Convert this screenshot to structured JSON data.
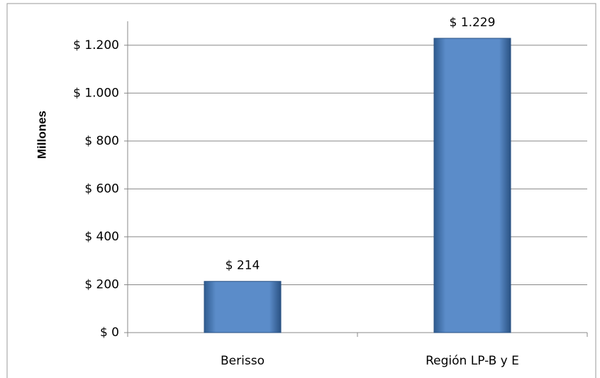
{
  "chart_data": {
    "type": "bar",
    "y_label": "Millones",
    "categories": [
      "Berisso",
      "Región LP-B y E"
    ],
    "values": [
      214,
      1229
    ],
    "value_labels": [
      "$ 214",
      "$ 1.229"
    ],
    "color": "#4f81bd",
    "ylim": [
      0,
      1300
    ],
    "yticks": [
      {
        "value": 0,
        "label": "$ 0"
      },
      {
        "value": 200,
        "label": "$ 200"
      },
      {
        "value": 400,
        "label": "$ 400"
      },
      {
        "value": 600,
        "label": "$ 600"
      },
      {
        "value": 800,
        "label": "$ 800"
      },
      {
        "value": 1000,
        "label": "$ 1.000"
      },
      {
        "value": 1200,
        "label": "$ 1.200"
      }
    ],
    "grid": true
  }
}
